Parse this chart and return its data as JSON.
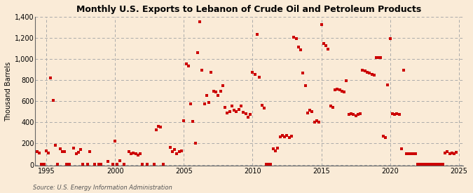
{
  "title": "Monthly U.S. Exports to Lebanon of Crude Oil and Petroleum Products",
  "ylabel": "Thousand Barrels",
  "source_text": "Source: U.S. Energy Information Administration",
  "background_color": "#faebd7",
  "marker_color": "#cc0000",
  "xlim": [
    1994.2,
    2025.3
  ],
  "ylim": [
    -10,
    1400
  ],
  "yticks": [
    0,
    200,
    400,
    600,
    800,
    1000,
    1200,
    1400
  ],
  "xticks": [
    1995,
    2000,
    2005,
    2010,
    2015,
    2020,
    2025
  ],
  "grid_color": "#aaaaaa",
  "data": [
    [
      1994.33,
      120
    ],
    [
      1994.5,
      110
    ],
    [
      1994.67,
      5
    ],
    [
      1994.83,
      2
    ],
    [
      1995.0,
      130
    ],
    [
      1995.17,
      110
    ],
    [
      1995.33,
      820
    ],
    [
      1995.5,
      605
    ],
    [
      1995.67,
      180
    ],
    [
      1995.83,
      2
    ],
    [
      1996.0,
      150
    ],
    [
      1996.17,
      120
    ],
    [
      1996.33,
      125
    ],
    [
      1996.5,
      5
    ],
    [
      1996.67,
      2
    ],
    [
      1997.0,
      155
    ],
    [
      1997.17,
      100
    ],
    [
      1997.33,
      115
    ],
    [
      1997.5,
      140
    ],
    [
      1997.67,
      5
    ],
    [
      1998.0,
      5
    ],
    [
      1998.17,
      125
    ],
    [
      1998.5,
      2
    ],
    [
      1998.83,
      2
    ],
    [
      1999.0,
      5
    ],
    [
      1999.5,
      30
    ],
    [
      1999.83,
      5
    ],
    [
      2000.0,
      225
    ],
    [
      2000.17,
      5
    ],
    [
      2000.33,
      40
    ],
    [
      2000.67,
      2
    ],
    [
      2001.0,
      120
    ],
    [
      2001.17,
      100
    ],
    [
      2001.33,
      110
    ],
    [
      2001.5,
      100
    ],
    [
      2001.67,
      90
    ],
    [
      2001.83,
      100
    ],
    [
      2002.0,
      5
    ],
    [
      2002.33,
      5
    ],
    [
      2002.83,
      5
    ],
    [
      2003.0,
      330
    ],
    [
      2003.17,
      365
    ],
    [
      2003.33,
      355
    ],
    [
      2003.5,
      5
    ],
    [
      2004.0,
      160
    ],
    [
      2004.17,
      120
    ],
    [
      2004.33,
      140
    ],
    [
      2004.5,
      100
    ],
    [
      2004.67,
      120
    ],
    [
      2004.83,
      130
    ],
    [
      2005.0,
      415
    ],
    [
      2005.17,
      955
    ],
    [
      2005.33,
      935
    ],
    [
      2005.5,
      575
    ],
    [
      2005.67,
      410
    ],
    [
      2005.83,
      200
    ],
    [
      2006.0,
      1060
    ],
    [
      2006.17,
      1355
    ],
    [
      2006.33,
      895
    ],
    [
      2006.5,
      575
    ],
    [
      2006.67,
      655
    ],
    [
      2006.83,
      590
    ],
    [
      2007.0,
      875
    ],
    [
      2007.17,
      695
    ],
    [
      2007.33,
      685
    ],
    [
      2007.5,
      655
    ],
    [
      2007.67,
      695
    ],
    [
      2007.83,
      745
    ],
    [
      2008.0,
      540
    ],
    [
      2008.17,
      490
    ],
    [
      2008.33,
      505
    ],
    [
      2008.5,
      555
    ],
    [
      2008.67,
      515
    ],
    [
      2008.83,
      500
    ],
    [
      2009.0,
      525
    ],
    [
      2009.17,
      555
    ],
    [
      2009.33,
      495
    ],
    [
      2009.5,
      485
    ],
    [
      2009.67,
      450
    ],
    [
      2009.83,
      475
    ],
    [
      2010.0,
      875
    ],
    [
      2010.17,
      855
    ],
    [
      2010.33,
      1235
    ],
    [
      2010.5,
      825
    ],
    [
      2010.67,
      565
    ],
    [
      2010.83,
      535
    ],
    [
      2011.0,
      5
    ],
    [
      2011.17,
      2
    ],
    [
      2011.33,
      2
    ],
    [
      2011.5,
      150
    ],
    [
      2011.67,
      130
    ],
    [
      2011.83,
      155
    ],
    [
      2012.0,
      260
    ],
    [
      2012.17,
      275
    ],
    [
      2012.33,
      260
    ],
    [
      2012.5,
      275
    ],
    [
      2012.67,
      255
    ],
    [
      2012.83,
      270
    ],
    [
      2013.0,
      1205
    ],
    [
      2013.17,
      1195
    ],
    [
      2013.33,
      1115
    ],
    [
      2013.5,
      1085
    ],
    [
      2013.67,
      865
    ],
    [
      2013.83,
      745
    ],
    [
      2014.0,
      490
    ],
    [
      2014.17,
      515
    ],
    [
      2014.33,
      505
    ],
    [
      2014.5,
      400
    ],
    [
      2014.67,
      415
    ],
    [
      2014.83,
      405
    ],
    [
      2015.0,
      1325
    ],
    [
      2015.17,
      1145
    ],
    [
      2015.33,
      1125
    ],
    [
      2015.5,
      1095
    ],
    [
      2015.67,
      555
    ],
    [
      2015.83,
      545
    ],
    [
      2016.0,
      710
    ],
    [
      2016.17,
      715
    ],
    [
      2016.33,
      705
    ],
    [
      2016.5,
      695
    ],
    [
      2016.67,
      685
    ],
    [
      2016.83,
      795
    ],
    [
      2017.0,
      475
    ],
    [
      2017.17,
      485
    ],
    [
      2017.33,
      475
    ],
    [
      2017.5,
      460
    ],
    [
      2017.67,
      475
    ],
    [
      2017.83,
      485
    ],
    [
      2018.0,
      895
    ],
    [
      2018.17,
      885
    ],
    [
      2018.33,
      875
    ],
    [
      2018.5,
      865
    ],
    [
      2018.67,
      855
    ],
    [
      2018.83,
      845
    ],
    [
      2019.0,
      1015
    ],
    [
      2019.17,
      1015
    ],
    [
      2019.33,
      1015
    ],
    [
      2019.5,
      270
    ],
    [
      2019.67,
      255
    ],
    [
      2019.83,
      755
    ],
    [
      2020.0,
      1195
    ],
    [
      2020.17,
      485
    ],
    [
      2020.33,
      475
    ],
    [
      2020.5,
      485
    ],
    [
      2020.67,
      475
    ],
    [
      2020.83,
      150
    ],
    [
      2021.0,
      895
    ],
    [
      2021.17,
      100
    ],
    [
      2021.33,
      100
    ],
    [
      2021.5,
      105
    ],
    [
      2021.67,
      100
    ],
    [
      2021.83,
      105
    ],
    [
      2022.0,
      5
    ],
    [
      2022.17,
      5
    ],
    [
      2022.33,
      5
    ],
    [
      2022.5,
      5
    ],
    [
      2022.67,
      5
    ],
    [
      2022.83,
      5
    ],
    [
      2023.0,
      5
    ],
    [
      2023.17,
      5
    ],
    [
      2023.33,
      5
    ],
    [
      2023.5,
      5
    ],
    [
      2023.67,
      5
    ],
    [
      2023.83,
      5
    ],
    [
      2024.0,
      110
    ],
    [
      2024.17,
      120
    ],
    [
      2024.33,
      100
    ],
    [
      2024.5,
      110
    ],
    [
      2024.67,
      100
    ],
    [
      2024.83,
      115
    ]
  ]
}
